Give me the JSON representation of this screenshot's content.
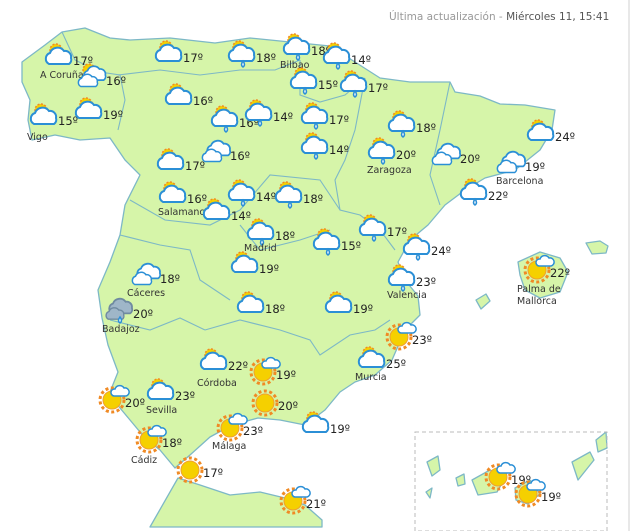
{
  "header": {
    "updated_label": "Última actualización - ",
    "updated_value": "Miércoles 11, 15:41"
  },
  "colors": {
    "land": "#d6f5a9",
    "border": "#7db8c6",
    "cloud_stroke": "#2b8fd6",
    "sun": "#f5d000",
    "sun_rays": "#f08a24",
    "dark_cloud": "#9fb6c8"
  },
  "markers": [
    {
      "icon": "sun-cloud",
      "temp": "17º",
      "city": "A Coruña"
    },
    {
      "icon": "sun-clouds",
      "temp": "16º"
    },
    {
      "icon": "sun-cloud",
      "temp": "15º",
      "city": "Vigo"
    },
    {
      "icon": "sun-cloud",
      "temp": "19º"
    },
    {
      "icon": "sun-cloud",
      "temp": "17º"
    },
    {
      "icon": "sun-cloud-rain",
      "temp": "18º"
    },
    {
      "icon": "sun-cloud-rain",
      "temp": "18º",
      "city": "Bilbao"
    },
    {
      "icon": "sun-cloud-rain",
      "temp": "14º"
    },
    {
      "icon": "sun-cloud-rain",
      "temp": "15º"
    },
    {
      "icon": "sun-cloud-rain",
      "temp": "17º"
    },
    {
      "icon": "sun-cloud",
      "temp": "16º"
    },
    {
      "icon": "sun-cloud-rain",
      "temp": "16º"
    },
    {
      "icon": "sun-cloud-rain",
      "temp": "14º"
    },
    {
      "icon": "sun-cloud-rain",
      "temp": "17º"
    },
    {
      "icon": "sun-cloud-rain",
      "temp": "14º"
    },
    {
      "icon": "sun-cloud-rain",
      "temp": "18º"
    },
    {
      "icon": "sun-cloud-rain",
      "temp": "20º",
      "city": "Zaragoza"
    },
    {
      "icon": "clouds",
      "temp": "20º"
    },
    {
      "icon": "clouds",
      "temp": "19º",
      "city": "Barcelona"
    },
    {
      "icon": "sun-cloud",
      "temp": "24º"
    },
    {
      "icon": "sun-cloud-rain",
      "temp": "22º"
    },
    {
      "icon": "sun-cloud",
      "temp": "17º"
    },
    {
      "icon": "clouds",
      "temp": "16º"
    },
    {
      "icon": "sun-cloud",
      "temp": "16º",
      "city": "Salamanca"
    },
    {
      "icon": "sun-cloud",
      "temp": "14º"
    },
    {
      "icon": "sun-cloud-rain",
      "temp": "14º"
    },
    {
      "icon": "sun-cloud-rain",
      "temp": "18º"
    },
    {
      "icon": "sun-cloud-rain",
      "temp": "18º",
      "city": "Madrid"
    },
    {
      "icon": "sun-cloud-rain",
      "temp": "15º"
    },
    {
      "icon": "sun-cloud-rain",
      "temp": "17º"
    },
    {
      "icon": "sun-cloud-rain",
      "temp": "24º"
    },
    {
      "icon": "sun-cloud-rain",
      "temp": "23º",
      "city": "Valencia"
    },
    {
      "icon": "sun-small-cloud",
      "temp": "22º",
      "city": "Palma de Mallorca"
    },
    {
      "icon": "clouds",
      "temp": "18º",
      "city": "Cáceres"
    },
    {
      "icon": "dark-cloud-rain",
      "temp": "20º",
      "city": "Badajoz"
    },
    {
      "icon": "sun-cloud",
      "temp": "19º"
    },
    {
      "icon": "sun-cloud",
      "temp": "18º"
    },
    {
      "icon": "sun-cloud",
      "temp": "19º"
    },
    {
      "icon": "sun-small-cloud",
      "temp": "23º"
    },
    {
      "icon": "sun-cloud",
      "temp": "25º",
      "city": "Murcia"
    },
    {
      "icon": "sun-cloud",
      "temp": "22º",
      "city": "Córdoba"
    },
    {
      "icon": "sun-small-cloud",
      "temp": "19º"
    },
    {
      "icon": "sun-small-cloud",
      "temp": "20º"
    },
    {
      "icon": "sun-cloud",
      "temp": "23º",
      "city": "Sevilla"
    },
    {
      "icon": "sun",
      "temp": "20º"
    },
    {
      "icon": "sun-small-cloud",
      "temp": "23º",
      "city": "Málaga"
    },
    {
      "icon": "sun-cloud",
      "temp": "19º"
    },
    {
      "icon": "sun-small-cloud",
      "temp": "18º",
      "city": "Cádiz"
    },
    {
      "icon": "sun",
      "temp": "17º"
    },
    {
      "icon": "sun-small-cloud",
      "temp": "21º"
    },
    {
      "icon": "sun-small-cloud",
      "temp": "19º"
    },
    {
      "icon": "sun-small-cloud",
      "temp": "19º"
    }
  ]
}
